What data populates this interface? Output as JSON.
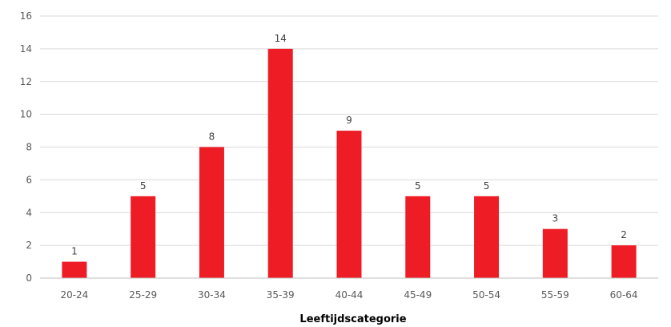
{
  "chart_data": {
    "type": "bar",
    "title": "",
    "xlabel": "Leeftijdscategorie",
    "ylabel": "",
    "categories": [
      "20-24",
      "25-29",
      "30-34",
      "35-39",
      "40-44",
      "45-49",
      "50-54",
      "55-59",
      "60-64"
    ],
    "values": [
      1,
      5,
      8,
      14,
      9,
      5,
      5,
      3,
      2
    ],
    "data_labels": [
      "1",
      "5",
      "8",
      "14",
      "9",
      "5",
      "5",
      "3",
      "2"
    ],
    "ylim": [
      0,
      16
    ],
    "yticks": [
      "0",
      "2",
      "4",
      "6",
      "8",
      "10",
      "12",
      "14",
      "16"
    ],
    "grid": true,
    "legend": "none",
    "bar_color": "#ee1c25"
  }
}
